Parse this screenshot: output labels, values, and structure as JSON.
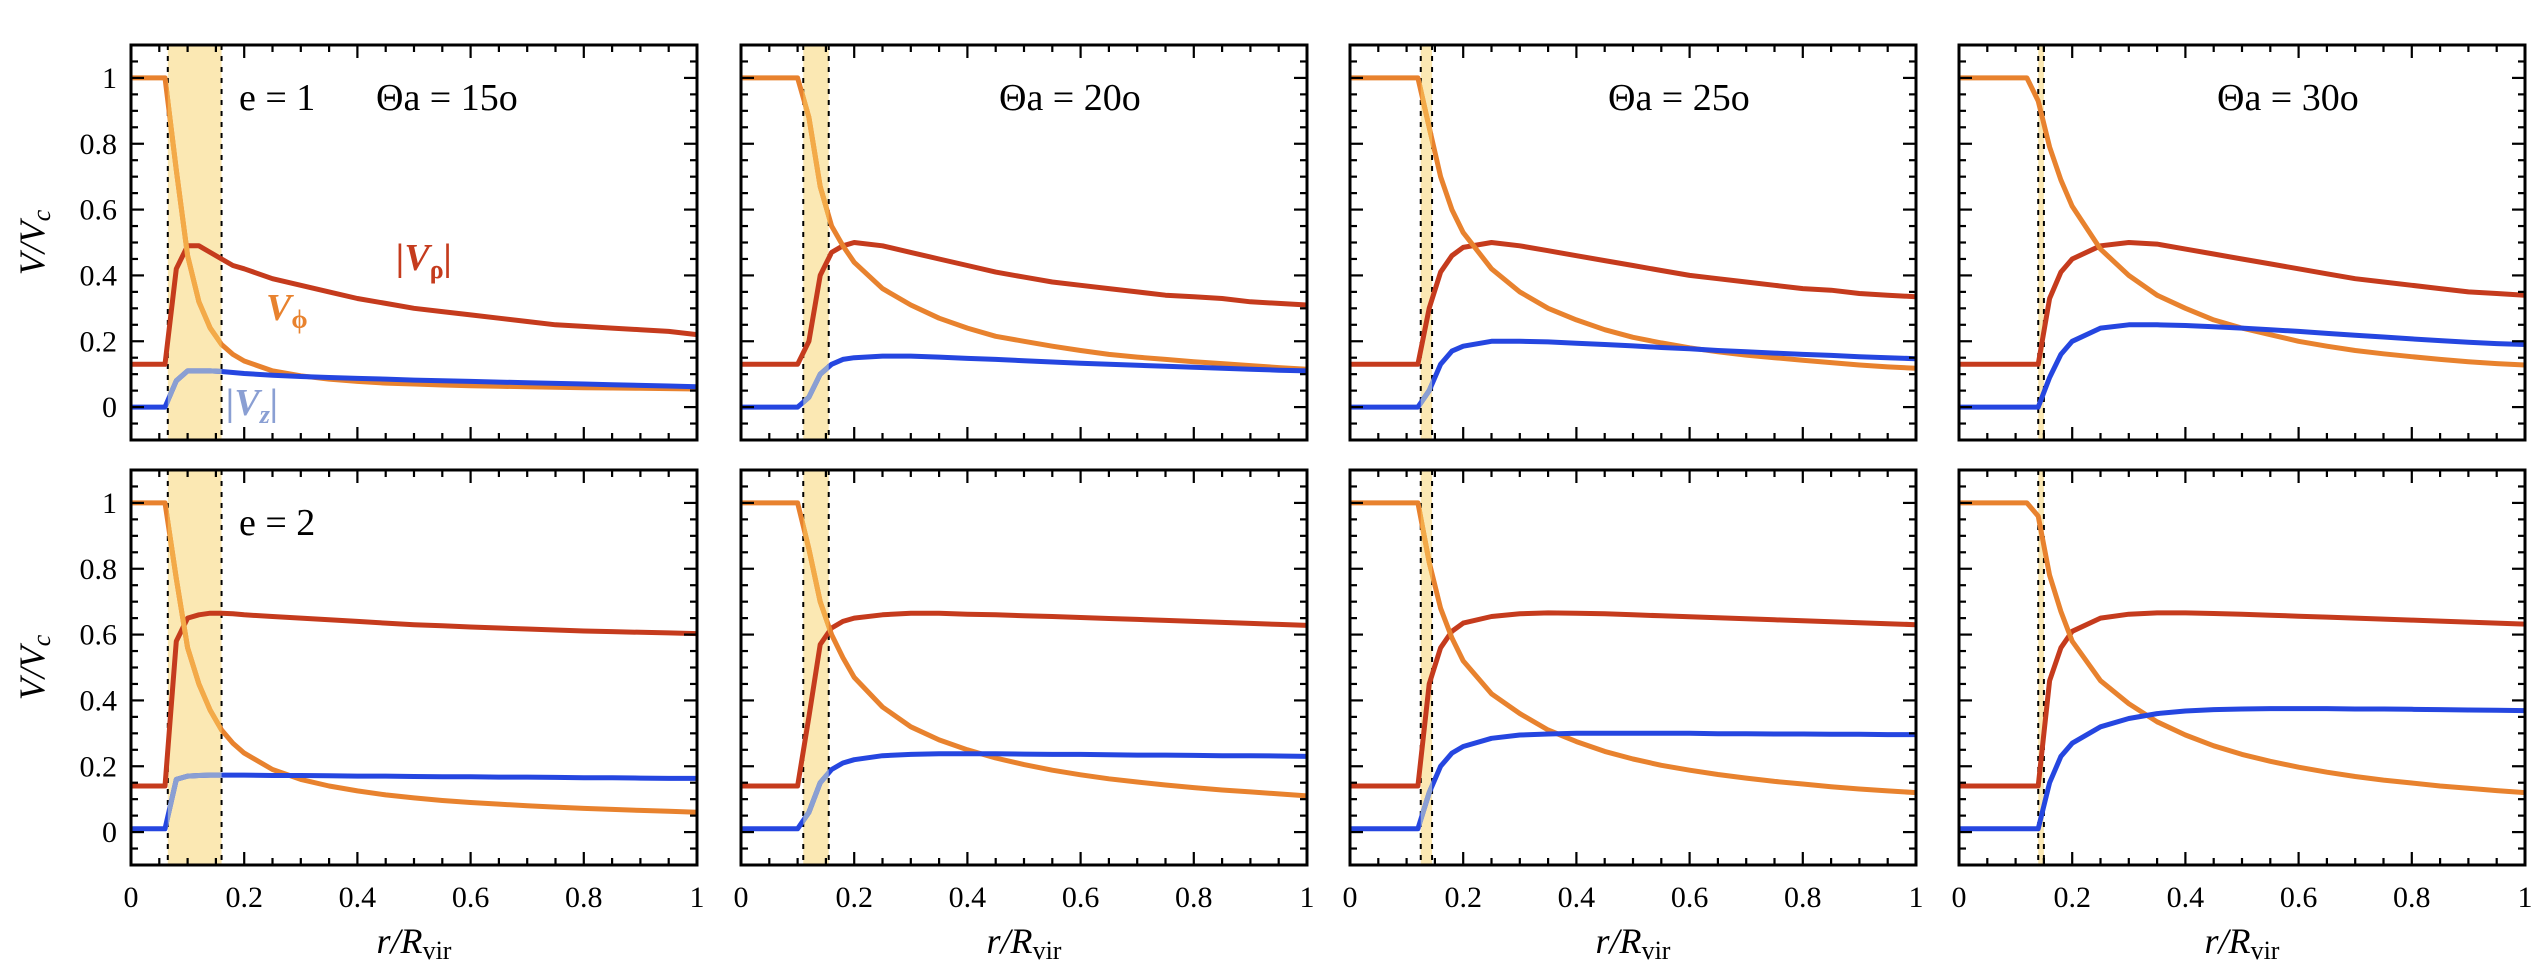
{
  "chart_data": {
    "type": "line",
    "layout": "2 rows x 4 columns of panels",
    "x": [
      0,
      0.02,
      0.04,
      0.06,
      0.08,
      0.1,
      0.12,
      0.14,
      0.16,
      0.18,
      0.2,
      0.25,
      0.3,
      0.35,
      0.4,
      0.45,
      0.5,
      0.55,
      0.6,
      0.65,
      0.7,
      0.75,
      0.8,
      0.85,
      0.9,
      0.95,
      1
    ],
    "xlabel": "r/R",
    "xlabel_sub": "vir",
    "ylabel": "V/V",
    "ylabel_sub": "c",
    "xlim": [
      0,
      1
    ],
    "ylim": [
      -0.1,
      1.1
    ],
    "xticks": [
      "0",
      "0.2",
      "0.4",
      "0.6",
      "0.8",
      "1"
    ],
    "yticks": [
      "0",
      "0.2",
      "0.4",
      "0.6",
      "0.8",
      "1"
    ],
    "colors": {
      "V_rho": "#c53b1d",
      "V_phi": "#e8822e",
      "V_z": "#2546e0",
      "V_phi_band": "#f3aa48",
      "V_z_band": "#8a9fd3",
      "band": "#fbe8b3"
    },
    "series_labels": {
      "V_rho": "|V",
      "V_rho_sub": "ρ",
      "V_phi": "V",
      "V_phi_sub": "ϕ",
      "V_z": "|V",
      "V_z_sub": "z"
    },
    "panels": [
      {
        "row": 1,
        "col": 1,
        "e": "e = 1",
        "theta": "Θa = 15o",
        "band": [
          0.065,
          0.16
        ],
        "series": [
          {
            "name": "|Vρ|",
            "values": [
              0.13,
              0.13,
              0.13,
              0.13,
              0.42,
              0.49,
              0.49,
              0.47,
              0.45,
              0.43,
              0.42,
              0.39,
              0.37,
              0.35,
              0.33,
              0.315,
              0.3,
              0.29,
              0.28,
              0.27,
              0.26,
              0.25,
              0.245,
              0.24,
              0.235,
              0.23,
              0.22
            ]
          },
          {
            "name": "Vϕ",
            "values": [
              1,
              1,
              1,
              1,
              0.72,
              0.46,
              0.32,
              0.24,
              0.19,
              0.16,
              0.14,
              0.11,
              0.095,
              0.085,
              0.078,
              0.073,
              0.07,
              0.067,
              0.065,
              0.063,
              0.062,
              0.06,
              0.059,
              0.058,
              0.057,
              0.056,
              0.055
            ]
          },
          {
            "name": "|Vz|",
            "values": [
              0,
              0,
              0,
              0,
              0.08,
              0.11,
              0.11,
              0.11,
              0.108,
              0.105,
              0.102,
              0.097,
              0.093,
              0.09,
              0.087,
              0.085,
              0.082,
              0.08,
              0.078,
              0.076,
              0.074,
              0.072,
              0.07,
              0.068,
              0.066,
              0.064,
              0.062
            ]
          }
        ]
      },
      {
        "row": 1,
        "col": 2,
        "e": "",
        "theta": "Θa = 20o",
        "band": [
          0.11,
          0.155
        ],
        "series": [
          {
            "name": "|Vρ|",
            "values": [
              0.13,
              0.13,
              0.13,
              0.13,
              0.13,
              0.13,
              0.2,
              0.4,
              0.47,
              0.49,
              0.5,
              0.49,
              0.47,
              0.45,
              0.43,
              0.41,
              0.395,
              0.38,
              0.37,
              0.36,
              0.35,
              0.34,
              0.335,
              0.33,
              0.32,
              0.315,
              0.31
            ]
          },
          {
            "name": "Vϕ",
            "values": [
              1,
              1,
              1,
              1,
              1,
              1,
              0.88,
              0.67,
              0.55,
              0.49,
              0.44,
              0.36,
              0.31,
              0.27,
              0.24,
              0.215,
              0.2,
              0.185,
              0.172,
              0.16,
              0.152,
              0.145,
              0.138,
              0.132,
              0.126,
              0.12,
              0.115
            ]
          },
          {
            "name": "|Vz|",
            "values": [
              0,
              0,
              0,
              0,
              0,
              0,
              0.03,
              0.1,
              0.13,
              0.145,
              0.15,
              0.155,
              0.155,
              0.152,
              0.148,
              0.145,
              0.141,
              0.137,
              0.133,
              0.13,
              0.127,
              0.124,
              0.121,
              0.118,
              0.115,
              0.112,
              0.11
            ]
          }
        ]
      },
      {
        "row": 1,
        "col": 3,
        "e": "",
        "theta": "Θa = 25o",
        "band": [
          0.125,
          0.145
        ],
        "series": [
          {
            "name": "|Vρ|",
            "values": [
              0.13,
              0.13,
              0.13,
              0.13,
              0.13,
              0.13,
              0.13,
              0.3,
              0.41,
              0.46,
              0.485,
              0.5,
              0.49,
              0.475,
              0.46,
              0.445,
              0.43,
              0.415,
              0.4,
              0.39,
              0.38,
              0.37,
              0.36,
              0.355,
              0.345,
              0.34,
              0.335
            ]
          },
          {
            "name": "Vϕ",
            "values": [
              1,
              1,
              1,
              1,
              1,
              1,
              1,
              0.85,
              0.7,
              0.6,
              0.53,
              0.42,
              0.35,
              0.3,
              0.265,
              0.235,
              0.212,
              0.195,
              0.18,
              0.168,
              0.158,
              0.15,
              0.142,
              0.135,
              0.128,
              0.122,
              0.118
            ]
          },
          {
            "name": "|Vz|",
            "values": [
              0,
              0,
              0,
              0,
              0,
              0,
              0,
              0.05,
              0.13,
              0.17,
              0.185,
              0.2,
              0.2,
              0.198,
              0.194,
              0.19,
              0.186,
              0.181,
              0.177,
              0.172,
              0.168,
              0.164,
              0.16,
              0.157,
              0.153,
              0.15,
              0.147
            ]
          }
        ]
      },
      {
        "row": 1,
        "col": 4,
        "e": "",
        "theta": "Θa = 30o",
        "band": [
          0.14,
          0.15
        ],
        "series": [
          {
            "name": "|Vρ|",
            "values": [
              0.13,
              0.13,
              0.13,
              0.13,
              0.13,
              0.13,
              0.13,
              0.13,
              0.33,
              0.41,
              0.45,
              0.49,
              0.5,
              0.495,
              0.48,
              0.465,
              0.45,
              0.435,
              0.42,
              0.405,
              0.39,
              0.38,
              0.37,
              0.36,
              0.35,
              0.345,
              0.34
            ]
          },
          {
            "name": "Vϕ",
            "values": [
              1,
              1,
              1,
              1,
              1,
              1,
              1,
              0.93,
              0.79,
              0.69,
              0.61,
              0.48,
              0.4,
              0.34,
              0.3,
              0.265,
              0.24,
              0.22,
              0.2,
              0.185,
              0.172,
              0.162,
              0.153,
              0.145,
              0.138,
              0.132,
              0.128
            ]
          },
          {
            "name": "|Vz|",
            "values": [
              0,
              0,
              0,
              0,
              0,
              0,
              0,
              0,
              0.09,
              0.16,
              0.2,
              0.24,
              0.25,
              0.25,
              0.248,
              0.244,
              0.24,
              0.235,
              0.23,
              0.224,
              0.218,
              0.213,
              0.207,
              0.202,
              0.197,
              0.193,
              0.19
            ]
          }
        ]
      },
      {
        "row": 2,
        "col": 1,
        "e": "e = 2",
        "theta": "",
        "band": [
          0.065,
          0.16
        ],
        "series": [
          {
            "name": "|Vρ|",
            "values": [
              0.14,
              0.14,
              0.14,
              0.14,
              0.58,
              0.65,
              0.66,
              0.665,
              0.665,
              0.663,
              0.66,
              0.655,
              0.65,
              0.645,
              0.64,
              0.635,
              0.63,
              0.627,
              0.623,
              0.62,
              0.617,
              0.614,
              0.611,
              0.609,
              0.607,
              0.605,
              0.603
            ]
          },
          {
            "name": "Vϕ",
            "values": [
              1,
              1,
              1,
              1,
              0.77,
              0.56,
              0.45,
              0.37,
              0.31,
              0.27,
              0.24,
              0.19,
              0.16,
              0.14,
              0.125,
              0.113,
              0.104,
              0.096,
              0.09,
              0.085,
              0.08,
              0.076,
              0.072,
              0.069,
              0.066,
              0.063,
              0.06
            ]
          },
          {
            "name": "|Vz|",
            "values": [
              0.01,
              0.01,
              0.01,
              0.01,
              0.16,
              0.17,
              0.172,
              0.173,
              0.173,
              0.173,
              0.173,
              0.172,
              0.172,
              0.171,
              0.17,
              0.17,
              0.169,
              0.168,
              0.168,
              0.167,
              0.167,
              0.166,
              0.165,
              0.165,
              0.164,
              0.163,
              0.163
            ]
          }
        ]
      },
      {
        "row": 2,
        "col": 2,
        "e": "",
        "theta": "",
        "band": [
          0.11,
          0.155
        ],
        "series": [
          {
            "name": "|Vρ|",
            "values": [
              0.14,
              0.14,
              0.14,
              0.14,
              0.14,
              0.14,
              0.35,
              0.57,
              0.62,
              0.64,
              0.65,
              0.66,
              0.665,
              0.665,
              0.662,
              0.66,
              0.657,
              0.655,
              0.652,
              0.649,
              0.646,
              0.643,
              0.64,
              0.637,
              0.634,
              0.631,
              0.628
            ]
          },
          {
            "name": "Vϕ",
            "values": [
              1,
              1,
              1,
              1,
              1,
              1,
              0.86,
              0.7,
              0.6,
              0.53,
              0.47,
              0.38,
              0.32,
              0.28,
              0.25,
              0.225,
              0.205,
              0.188,
              0.174,
              0.162,
              0.152,
              0.143,
              0.135,
              0.128,
              0.122,
              0.116,
              0.11
            ]
          },
          {
            "name": "|Vz|",
            "values": [
              0.01,
              0.01,
              0.01,
              0.01,
              0.01,
              0.01,
              0.06,
              0.15,
              0.19,
              0.21,
              0.22,
              0.232,
              0.236,
              0.238,
              0.238,
              0.238,
              0.237,
              0.236,
              0.236,
              0.235,
              0.234,
              0.234,
              0.233,
              0.232,
              0.232,
              0.231,
              0.23
            ]
          }
        ]
      },
      {
        "row": 2,
        "col": 3,
        "e": "",
        "theta": "",
        "band": [
          0.125,
          0.145
        ],
        "series": [
          {
            "name": "|Vρ|",
            "values": [
              0.14,
              0.14,
              0.14,
              0.14,
              0.14,
              0.14,
              0.14,
              0.45,
              0.56,
              0.61,
              0.635,
              0.655,
              0.663,
              0.666,
              0.665,
              0.663,
              0.66,
              0.657,
              0.654,
              0.651,
              0.648,
              0.645,
              0.642,
              0.639,
              0.636,
              0.633,
              0.63
            ]
          },
          {
            "name": "Vϕ",
            "values": [
              1,
              1,
              1,
              1,
              1,
              1,
              1,
              0.82,
              0.68,
              0.59,
              0.52,
              0.42,
              0.36,
              0.31,
              0.275,
              0.245,
              0.222,
              0.203,
              0.188,
              0.175,
              0.164,
              0.154,
              0.146,
              0.138,
              0.131,
              0.125,
              0.12
            ]
          },
          {
            "name": "|Vz|",
            "values": [
              0.01,
              0.01,
              0.01,
              0.01,
              0.01,
              0.01,
              0.01,
              0.12,
              0.2,
              0.24,
              0.26,
              0.285,
              0.295,
              0.298,
              0.3,
              0.3,
              0.3,
              0.3,
              0.3,
              0.299,
              0.299,
              0.298,
              0.298,
              0.297,
              0.297,
              0.296,
              0.296
            ]
          }
        ]
      },
      {
        "row": 2,
        "col": 4,
        "e": "",
        "theta": "",
        "band": [
          0.14,
          0.15
        ],
        "series": [
          {
            "name": "|Vρ|",
            "values": [
              0.14,
              0.14,
              0.14,
              0.14,
              0.14,
              0.14,
              0.14,
              0.14,
              0.46,
              0.56,
              0.61,
              0.65,
              0.662,
              0.666,
              0.666,
              0.664,
              0.662,
              0.659,
              0.656,
              0.653,
              0.65,
              0.647,
              0.644,
              0.641,
              0.638,
              0.635,
              0.632
            ]
          },
          {
            "name": "Vϕ",
            "values": [
              1,
              1,
              1,
              1,
              1,
              1,
              1,
              0.96,
              0.78,
              0.67,
              0.58,
              0.46,
              0.39,
              0.335,
              0.295,
              0.262,
              0.236,
              0.215,
              0.197,
              0.182,
              0.169,
              0.158,
              0.149,
              0.14,
              0.133,
              0.126,
              0.12
            ]
          },
          {
            "name": "|Vz|",
            "values": [
              0.01,
              0.01,
              0.01,
              0.01,
              0.01,
              0.01,
              0.01,
              0.01,
              0.15,
              0.23,
              0.27,
              0.32,
              0.345,
              0.36,
              0.368,
              0.372,
              0.374,
              0.375,
              0.375,
              0.375,
              0.374,
              0.374,
              0.373,
              0.372,
              0.371,
              0.37,
              0.369
            ]
          }
        ]
      }
    ]
  }
}
